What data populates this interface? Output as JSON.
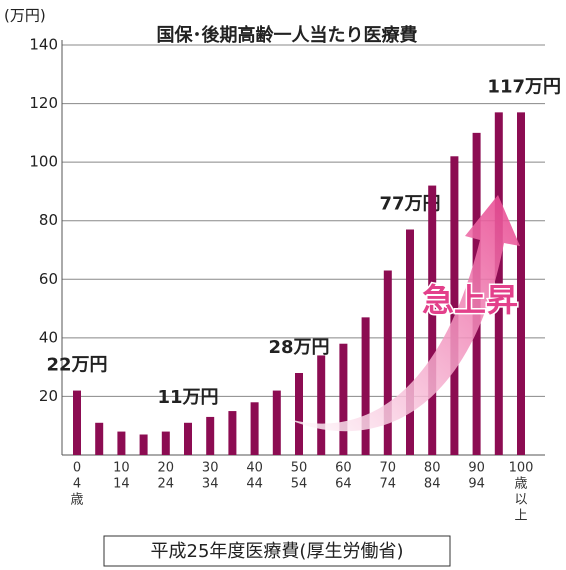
{
  "chart_data": {
    "type": "bar",
    "title": "国保･後期高齢一人当たり医療費",
    "unit_label": "(万円)",
    "annotation": "急上昇",
    "source": "平成25年度医療費(厚生労働省)",
    "categories": [
      [
        "0",
        "4",
        "歳"
      ],
      null,
      [
        "10",
        "14"
      ],
      null,
      [
        "20",
        "24"
      ],
      null,
      [
        "30",
        "34"
      ],
      null,
      [
        "40",
        "44"
      ],
      null,
      [
        "50",
        "54"
      ],
      null,
      [
        "60",
        "64"
      ],
      null,
      [
        "70",
        "74"
      ],
      null,
      [
        "80",
        "84"
      ],
      null,
      [
        "90",
        "94"
      ],
      null,
      [
        "100",
        "歳",
        "以",
        "上"
      ]
    ],
    "values": [
      22,
      11,
      8,
      7,
      8,
      11,
      13,
      15,
      18,
      22,
      28,
      34,
      38,
      47,
      63,
      77,
      92,
      102,
      110,
      117,
      117
    ],
    "value_labels": [
      "22万円",
      null,
      null,
      null,
      null,
      "11万円",
      null,
      null,
      null,
      null,
      "28万円",
      null,
      null,
      null,
      null,
      "77万円",
      null,
      null,
      null,
      null,
      "117万円"
    ],
    "color": "#8c0c52",
    "ylim": [
      0,
      140
    ],
    "yticks": [
      20,
      40,
      60,
      80,
      100,
      120,
      140
    ],
    "grid": true
  }
}
